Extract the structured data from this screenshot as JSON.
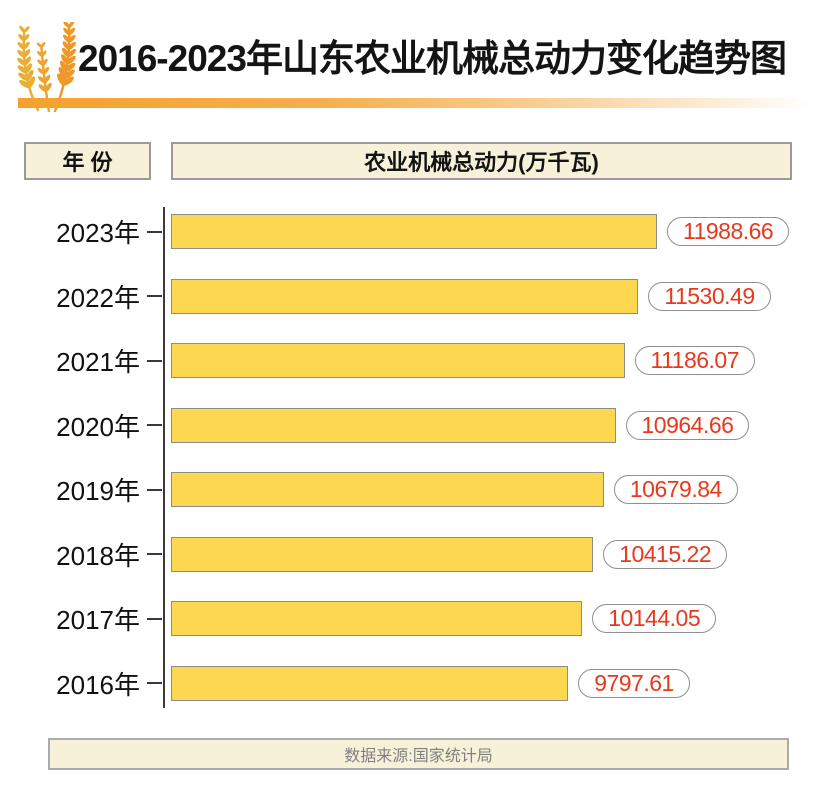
{
  "header": {
    "title": "2016-2023年山东农业机械总动力变化趋势图",
    "wheat_icon": "wheat-icon",
    "accent_color": "#F5A12C"
  },
  "columns": {
    "year_header": "年 份",
    "value_header": "农业机械总动力(万千瓦)"
  },
  "chart_data": {
    "type": "bar",
    "orientation": "horizontal",
    "title": "2016-2023年山东农业机械总动力变化趋势图",
    "xlabel": "农业机械总动力(万千瓦)",
    "ylabel": "年份",
    "categories": [
      "2023年",
      "2022年",
      "2021年",
      "2020年",
      "2019年",
      "2018年",
      "2017年",
      "2016年"
    ],
    "values": [
      11988.66,
      11530.49,
      11186.07,
      10964.66,
      10679.84,
      10415.22,
      10144.05,
      9797.61
    ],
    "xlim": [
      0,
      12000
    ],
    "grid": false,
    "legend": false,
    "bar_color": "#FDD750",
    "bar_border_color": "#8C8C8C",
    "value_label_color": "#E8391C"
  },
  "footer": {
    "source": "数据来源:国家统计局"
  },
  "colors": {
    "cream_panel": "#F8F1D9",
    "panel_border": "#9A9A9A",
    "axis": "#3A3A3A",
    "wheat_orange": "#EF9727",
    "wheat_gold": "#E9AE35"
  }
}
